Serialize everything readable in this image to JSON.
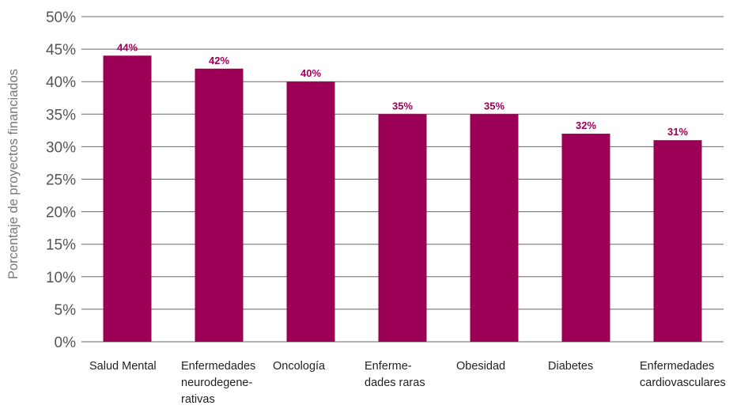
{
  "chart_data": {
    "type": "bar",
    "title": "",
    "xlabel": "",
    "ylabel": "Porcentaje de proyectos financiados",
    "categories": [
      "Salud Mental",
      "Enfermedades neurodegene- rativas",
      "Oncología",
      "Enferme- dades raras",
      "Obesidad",
      "Diabetes",
      "Enfermedades cardiovasculares"
    ],
    "category_lines": [
      [
        "Salud Mental"
      ],
      [
        "Enfermedades",
        "neurodegene-",
        "rativas"
      ],
      [
        "Oncología"
      ],
      [
        "Enferme-",
        "dades raras"
      ],
      [
        "Obesidad"
      ],
      [
        "Diabetes"
      ],
      [
        "Enfermedades",
        "cardiovasculares"
      ]
    ],
    "values": [
      44,
      42,
      40,
      35,
      35,
      32,
      31
    ],
    "data_labels": [
      "44%",
      "42%",
      "40%",
      "35%",
      "35%",
      "32%",
      "31%"
    ],
    "ylim": [
      0,
      50
    ],
    "yticks": [
      0,
      5,
      10,
      15,
      20,
      25,
      30,
      35,
      40,
      45,
      50
    ],
    "ytick_labels": [
      "0%",
      "5%",
      "10%",
      "15%",
      "20%",
      "25%",
      "30%",
      "35%",
      "40%",
      "45%",
      "50%"
    ],
    "grid": true,
    "legend": "none",
    "colors": {
      "bar": "#9b0056",
      "data_label": "#9b0056",
      "grid": "#666666"
    }
  }
}
